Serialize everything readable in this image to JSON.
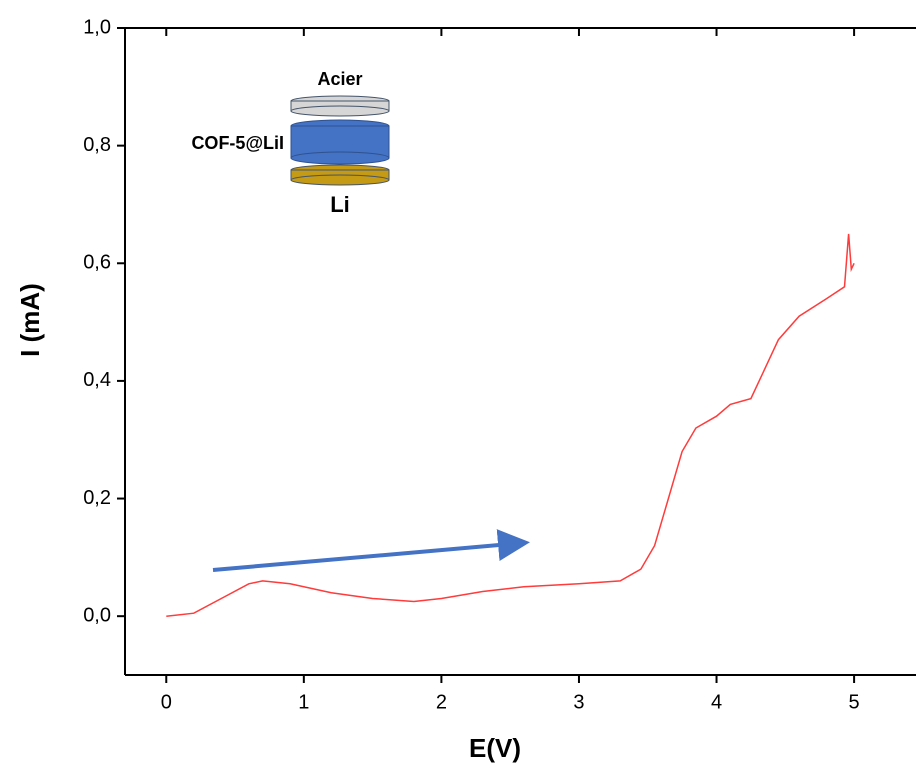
{
  "chart_data": {
    "type": "line",
    "x": [
      0,
      0.2,
      0.4,
      0.6,
      0.7,
      0.9,
      1.2,
      1.5,
      1.8,
      2.0,
      2.3,
      2.6,
      3.0,
      3.3,
      3.45,
      3.55,
      3.65,
      3.75,
      3.85,
      4.0,
      4.1,
      4.25,
      4.35,
      4.45,
      4.6,
      4.8,
      4.93,
      4.96,
      4.98,
      5.0
    ],
    "values": [
      0.0,
      0.005,
      0.03,
      0.055,
      0.06,
      0.055,
      0.04,
      0.03,
      0.025,
      0.03,
      0.042,
      0.05,
      0.055,
      0.06,
      0.08,
      0.12,
      0.2,
      0.28,
      0.32,
      0.34,
      0.36,
      0.37,
      0.42,
      0.47,
      0.51,
      0.54,
      0.56,
      0.65,
      0.59,
      0.6
    ],
    "color": "#ff3b3b",
    "xlabel": "E(V)",
    "ylabel": "I (mA)",
    "xlim": [
      -0.3,
      5.45
    ],
    "ylim": [
      -0.1,
      1.0
    ],
    "xticks": [
      0,
      1,
      2,
      3,
      4,
      5
    ],
    "yticks": [
      {
        "value": 0,
        "label": "0,0"
      },
      {
        "value": 0.2,
        "label": "0,2"
      },
      {
        "value": 0.4,
        "label": "0,4"
      },
      {
        "value": 0.6,
        "label": "0,6"
      },
      {
        "value": 0.8,
        "label": "0,8"
      },
      {
        "value": 1.0,
        "label": "1,0"
      }
    ],
    "annotations": [
      "Acier",
      "COF-5@LiI",
      "Li"
    ]
  }
}
